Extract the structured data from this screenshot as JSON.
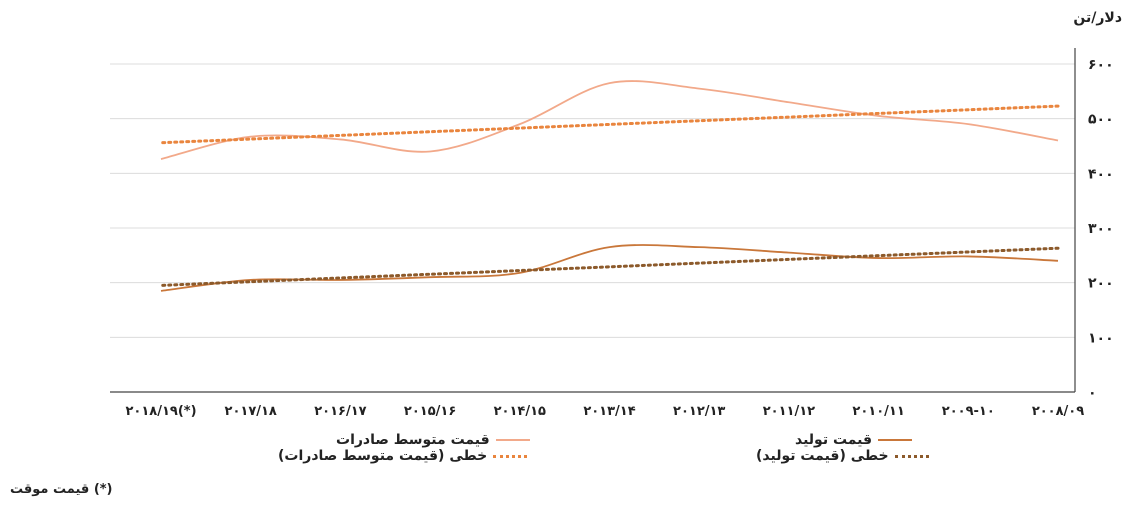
{
  "chart_data": {
    "type": "line",
    "ylabel": "دلار/تن",
    "ylim": [
      0,
      600
    ],
    "yticks": [
      "۰",
      "۱۰۰",
      "۲۰۰",
      "۳۰۰",
      "۴۰۰",
      "۵۰۰",
      "۶۰۰"
    ],
    "ytick_values": [
      0,
      100,
      200,
      300,
      400,
      500,
      600
    ],
    "categories": [
      "۲۰۰۸/۰۹",
      "۲۰۰۹-۱۰",
      "۲۰۱۰/۱۱",
      "۲۰۱۱/۱۲",
      "۲۰۱۲/۱۳",
      "۲۰۱۳/۱۴",
      "۲۰۱۴/۱۵",
      "۲۰۱۵/۱۶",
      "۲۰۱۶/۱۷",
      "۲۰۱۷/۱۸",
      "۲۰۱۸/۱۹(*)"
    ],
    "x_direction": "right-to-left",
    "grid": true,
    "series": [
      {
        "name": "قیمت متوسط صادرات",
        "style": "solid",
        "color": "#f2a98a",
        "values": [
          460,
          490,
          505,
          530,
          555,
          565,
          490,
          440,
          462,
          467,
          426
        ]
      },
      {
        "name": "قیمت تولید",
        "style": "solid",
        "color": "#c9773a",
        "values": [
          240,
          248,
          245,
          255,
          265,
          265,
          218,
          210,
          205,
          205,
          185
        ]
      },
      {
        "name": "خطی (قیمت متوسط صادرات)",
        "style": "dotted",
        "color": "#e9853e",
        "values": [
          523,
          516,
          509,
          502,
          495,
          488,
          481,
          474,
          467,
          460,
          456
        ]
      },
      {
        "name": "خطی (قیمت تولید)",
        "style": "dotted",
        "color": "#8c5a2b",
        "values": [
          263,
          256,
          249,
          242,
          235,
          228,
          221,
          214,
          207,
          200,
          195
        ]
      }
    ]
  },
  "footnote": "(*) قیمت موقت"
}
